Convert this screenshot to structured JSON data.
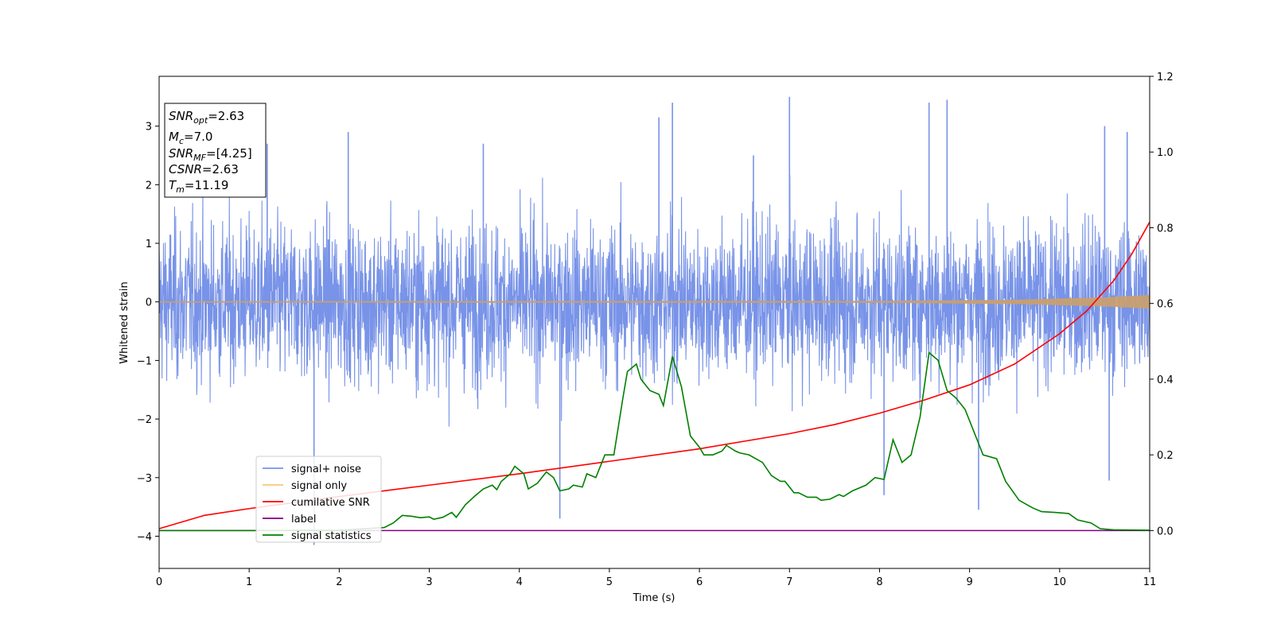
{
  "chart_data": {
    "type": "line",
    "xlabel": "Time (s)",
    "ylabel": "Whitened strain",
    "xlim": [
      0,
      11
    ],
    "ylim": [
      -4.55,
      3.85
    ],
    "ylim_right": [
      -0.1,
      1.2
    ],
    "xticks": [
      "0",
      "1",
      "2",
      "3",
      "4",
      "5",
      "6",
      "7",
      "8",
      "9",
      "10",
      "11"
    ],
    "yticks_left": [
      "−4",
      "−3",
      "−2",
      "−1",
      "0",
      "1",
      "2",
      "3"
    ],
    "yticks_right": [
      "0.0",
      "0.2",
      "0.4",
      "0.6",
      "0.8",
      "1.0",
      "1.2"
    ],
    "info_box": {
      "snr_opt": {
        "main": "SNR",
        "sub": "opt",
        "value": "=2.63"
      },
      "mc": {
        "main": "M",
        "sub": "c",
        "value": "=7.0"
      },
      "snr_mf": {
        "main": "SNR",
        "sub": "MF",
        "value": "=[4.25]"
      },
      "csnr": {
        "main": "CSNR",
        "value": "=2.63"
      },
      "tm": {
        "main": "T",
        "sub": "m",
        "value": "=11.19"
      }
    },
    "legend": {
      "position": "lower-left",
      "entries": [
        {
          "label": "signal+ noise",
          "color": "#7893e8"
        },
        {
          "label": "signal only",
          "color": "#f5c77a"
        },
        {
          "label": "cumilative SNR",
          "color": "#ff0000"
        },
        {
          "label": "label",
          "color": "#800080"
        },
        {
          "label": "signal statistics",
          "color": "#008000"
        }
      ]
    },
    "series": [
      {
        "name": "signal+ noise",
        "axis": "left",
        "color": "#7893e8",
        "style": "dense_noise",
        "band": [
          -2.6,
          2.6
        ],
        "peak_points": [
          [
            1.2,
            2.7
          ],
          [
            1.72,
            -4.15
          ],
          [
            2.1,
            2.9
          ],
          [
            3.6,
            2.7
          ],
          [
            4.45,
            -3.7
          ],
          [
            5.55,
            3.15
          ],
          [
            5.7,
            3.4
          ],
          [
            6.6,
            2.5
          ],
          [
            7.0,
            3.5
          ],
          [
            8.05,
            -3.3
          ],
          [
            8.55,
            3.4
          ],
          [
            8.75,
            3.45
          ],
          [
            9.1,
            -3.55
          ],
          [
            10.5,
            3.0
          ],
          [
            10.55,
            -3.05
          ],
          [
            10.75,
            2.9
          ]
        ]
      },
      {
        "name": "signal only",
        "axis": "left",
        "color": "#c89f70",
        "style": "chirp_envelope",
        "amplitude_points": [
          [
            0,
            0.005
          ],
          [
            8,
            0.01
          ],
          [
            9.5,
            0.03
          ],
          [
            10.5,
            0.07
          ],
          [
            11,
            0.11
          ]
        ]
      },
      {
        "name": "cumilative SNR",
        "axis": "right",
        "color": "#ff0000",
        "points": [
          [
            0,
            0.005
          ],
          [
            0.5,
            0.04
          ],
          [
            1,
            0.058
          ],
          [
            2,
            0.09
          ],
          [
            3,
            0.12
          ],
          [
            4,
            0.15
          ],
          [
            5,
            0.183
          ],
          [
            6,
            0.216
          ],
          [
            7,
            0.256
          ],
          [
            7.5,
            0.28
          ],
          [
            8,
            0.31
          ],
          [
            8.5,
            0.345
          ],
          [
            9,
            0.385
          ],
          [
            9.5,
            0.44
          ],
          [
            10,
            0.52
          ],
          [
            10.3,
            0.58
          ],
          [
            10.6,
            0.66
          ],
          [
            10.8,
            0.73
          ],
          [
            11,
            0.815
          ]
        ]
      },
      {
        "name": "label",
        "axis": "right",
        "color": "#800080",
        "points": [
          [
            0,
            0.0
          ],
          [
            11,
            0.0
          ]
        ]
      },
      {
        "name": "signal statistics",
        "axis": "right",
        "color": "#008000",
        "points": [
          [
            0,
            0.0
          ],
          [
            1.0,
            0.0
          ],
          [
            2.0,
            0.001
          ],
          [
            2.5,
            0.008
          ],
          [
            2.6,
            0.02
          ],
          [
            2.7,
            0.04
          ],
          [
            2.8,
            0.038
          ],
          [
            2.9,
            0.034
          ],
          [
            3.0,
            0.036
          ],
          [
            3.05,
            0.03
          ],
          [
            3.15,
            0.035
          ],
          [
            3.25,
            0.048
          ],
          [
            3.3,
            0.035
          ],
          [
            3.4,
            0.068
          ],
          [
            3.5,
            0.09
          ],
          [
            3.6,
            0.11
          ],
          [
            3.7,
            0.12
          ],
          [
            3.75,
            0.108
          ],
          [
            3.8,
            0.13
          ],
          [
            3.9,
            0.15
          ],
          [
            3.95,
            0.17
          ],
          [
            4.05,
            0.15
          ],
          [
            4.1,
            0.11
          ],
          [
            4.2,
            0.125
          ],
          [
            4.3,
            0.155
          ],
          [
            4.38,
            0.14
          ],
          [
            4.45,
            0.105
          ],
          [
            4.55,
            0.11
          ],
          [
            4.6,
            0.12
          ],
          [
            4.7,
            0.115
          ],
          [
            4.75,
            0.15
          ],
          [
            4.85,
            0.14
          ],
          [
            4.95,
            0.2
          ],
          [
            5.05,
            0.2
          ],
          [
            5.15,
            0.35
          ],
          [
            5.2,
            0.42
          ],
          [
            5.3,
            0.44
          ],
          [
            5.35,
            0.4
          ],
          [
            5.45,
            0.37
          ],
          [
            5.55,
            0.36
          ],
          [
            5.6,
            0.33
          ],
          [
            5.7,
            0.46
          ],
          [
            5.8,
            0.38
          ],
          [
            5.9,
            0.25
          ],
          [
            6.0,
            0.22
          ],
          [
            6.05,
            0.2
          ],
          [
            6.15,
            0.2
          ],
          [
            6.25,
            0.21
          ],
          [
            6.3,
            0.225
          ],
          [
            6.4,
            0.21
          ],
          [
            6.45,
            0.205
          ],
          [
            6.55,
            0.2
          ],
          [
            6.7,
            0.18
          ],
          [
            6.8,
            0.145
          ],
          [
            6.9,
            0.13
          ],
          [
            6.95,
            0.13
          ],
          [
            7.05,
            0.1
          ],
          [
            7.1,
            0.1
          ],
          [
            7.2,
            0.088
          ],
          [
            7.3,
            0.088
          ],
          [
            7.35,
            0.08
          ],
          [
            7.45,
            0.083
          ],
          [
            7.55,
            0.095
          ],
          [
            7.6,
            0.09
          ],
          [
            7.7,
            0.105
          ],
          [
            7.8,
            0.115
          ],
          [
            7.85,
            0.12
          ],
          [
            7.95,
            0.14
          ],
          [
            8.05,
            0.135
          ],
          [
            8.15,
            0.24
          ],
          [
            8.2,
            0.21
          ],
          [
            8.25,
            0.18
          ],
          [
            8.35,
            0.2
          ],
          [
            8.45,
            0.3
          ],
          [
            8.55,
            0.47
          ],
          [
            8.65,
            0.45
          ],
          [
            8.75,
            0.37
          ],
          [
            8.85,
            0.35
          ],
          [
            8.95,
            0.32
          ],
          [
            9.05,
            0.26
          ],
          [
            9.15,
            0.2
          ],
          [
            9.3,
            0.19
          ],
          [
            9.4,
            0.13
          ],
          [
            9.55,
            0.08
          ],
          [
            9.7,
            0.06
          ],
          [
            9.8,
            0.05
          ],
          [
            9.95,
            0.048
          ],
          [
            10.1,
            0.045
          ],
          [
            10.2,
            0.028
          ],
          [
            10.35,
            0.02
          ],
          [
            10.45,
            0.005
          ],
          [
            10.6,
            0.002
          ],
          [
            11,
            0.001
          ]
        ]
      }
    ]
  }
}
